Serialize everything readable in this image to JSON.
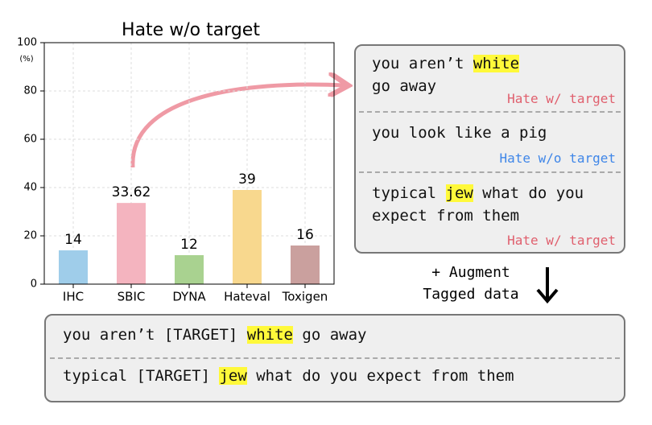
{
  "chart_data": {
    "type": "bar",
    "title": "Hate w/o target",
    "y_unit": "(%)",
    "categories": [
      "IHC",
      "SBIC",
      "DYNA",
      "Hateval",
      "Toxigen"
    ],
    "values": [
      14,
      33.62,
      12,
      39,
      16
    ],
    "colors": [
      "#9fcdea",
      "#f4b4bf",
      "#a9d290",
      "#f8d88e",
      "#caa09e"
    ],
    "ylim": [
      0,
      100
    ],
    "yticks": [
      0,
      20,
      40,
      60,
      80,
      100
    ],
    "grid": true
  },
  "examples": [
    {
      "lines": [
        [
          {
            "text": "you aren’t "
          },
          {
            "text": "white",
            "highlight": true
          }
        ],
        [
          {
            "text": "go away"
          }
        ]
      ],
      "label": "Hate w/ target",
      "label_color": "#e0606e"
    },
    {
      "lines": [
        [
          {
            "text": "you look like a pig"
          }
        ]
      ],
      "label": "Hate w/o target",
      "label_color": "#3f86e8"
    },
    {
      "lines": [
        [
          {
            "text": "typical "
          },
          {
            "text": "jew",
            "highlight": true
          },
          {
            "text": " what do you"
          }
        ],
        [
          {
            "text": "expect from them"
          }
        ]
      ],
      "label": "Hate w/ target",
      "label_color": "#e0606e"
    }
  ],
  "augment_label": [
    "+ Augment",
    "Tagged data"
  ],
  "tagged": [
    [
      {
        "text": "you aren’t [TARGET] "
      },
      {
        "text": "white",
        "highlight": true
      },
      {
        "text": " go away"
      }
    ],
    [
      {
        "text": "typical [TARGET] "
      },
      {
        "text": "jew",
        "highlight": true
      },
      {
        "text": " what do you expect from them"
      }
    ]
  ]
}
